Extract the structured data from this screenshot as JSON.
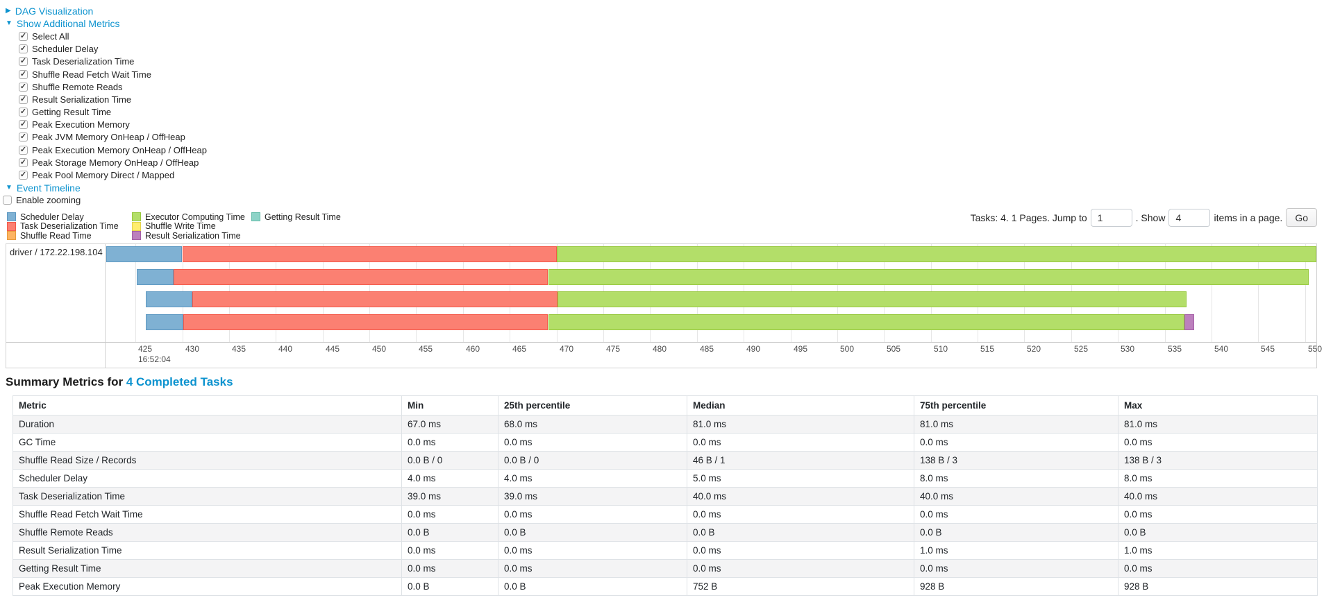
{
  "colors": {
    "link": "#0d93cf",
    "grid": "#e6e6e6",
    "series": {
      "Scheduler Delay": {
        "fill": "#7FB1D3",
        "border": "#5E99C2"
      },
      "Task Deserialization Time": {
        "fill": "#FB8072",
        "border": "#F4594A"
      },
      "Shuffle Read Time": {
        "fill": "#FDB462",
        "border": "#E89B3E"
      },
      "Executor Computing Time": {
        "fill": "#B3DE69",
        "border": "#97C83E"
      },
      "Shuffle Write Time": {
        "fill": "#FFED6F",
        "border": "#E4D24B"
      },
      "Result Serialization Time": {
        "fill": "#BC80BD",
        "border": "#A55FA6"
      },
      "Getting Result Time": {
        "fill": "#8DD3C7",
        "border": "#62BBA8"
      }
    }
  },
  "sections": {
    "dag": {
      "label": "DAG Visualization",
      "state": "collapsed"
    },
    "additional_metrics": {
      "label": "Show Additional Metrics",
      "state": "expanded"
    },
    "event_timeline": {
      "label": "Event Timeline",
      "state": "expanded"
    }
  },
  "metric_checkboxes": [
    {
      "label": "Select All",
      "checked": true
    },
    {
      "label": "Scheduler Delay",
      "checked": true
    },
    {
      "label": "Task Deserialization Time",
      "checked": true
    },
    {
      "label": "Shuffle Read Fetch Wait Time",
      "checked": true
    },
    {
      "label": "Shuffle Remote Reads",
      "checked": true
    },
    {
      "label": "Result Serialization Time",
      "checked": true
    },
    {
      "label": "Getting Result Time",
      "checked": true
    },
    {
      "label": "Peak Execution Memory",
      "checked": true
    },
    {
      "label": "Peak JVM Memory OnHeap / OffHeap",
      "checked": true
    },
    {
      "label": "Peak Execution Memory OnHeap / OffHeap",
      "checked": true
    },
    {
      "label": "Peak Storage Memory OnHeap / OffHeap",
      "checked": true
    },
    {
      "label": "Peak Pool Memory Direct / Mapped",
      "checked": true
    }
  ],
  "enable_zooming": {
    "label": "Enable zooming",
    "checked": false
  },
  "legend": {
    "columns": [
      [
        "Scheduler Delay",
        "Task Deserialization Time",
        "Shuffle Read Time"
      ],
      [
        "Executor Computing Time",
        "Shuffle Write Time",
        "Result Serialization Time"
      ],
      [
        "Getting Result Time"
      ]
    ]
  },
  "pagination": {
    "tasks_text": "Tasks: 4. 1 Pages. Jump to",
    "jump_value": "1",
    "show_text": ". Show",
    "show_value": "4",
    "items_text": "items in a page.",
    "go_label": "Go"
  },
  "chart_data": {
    "type": "timeline",
    "group_label": "driver / 172.22.198.104",
    "x_axis": {
      "start_label": "16:52:04",
      "unit": "milliseconds within 16:52:04",
      "domain": [
        421.8,
        551.2
      ],
      "ticks": [
        425,
        430,
        435,
        440,
        445,
        450,
        455,
        460,
        465,
        470,
        475,
        480,
        485,
        490,
        495,
        500,
        505,
        510,
        515,
        520,
        525,
        530,
        535,
        540,
        545,
        550
      ]
    },
    "tasks": [
      {
        "segments": [
          {
            "name": "Scheduler Delay",
            "start": 421.9,
            "end": 430.0
          },
          {
            "name": "Task Deserialization Time",
            "start": 430.0,
            "end": 470.0
          },
          {
            "name": "Executor Computing Time",
            "start": 470.0,
            "end": 551.2
          }
        ]
      },
      {
        "segments": [
          {
            "name": "Scheduler Delay",
            "start": 425.1,
            "end": 429.1
          },
          {
            "name": "Task Deserialization Time",
            "start": 429.1,
            "end": 469.1
          },
          {
            "name": "Executor Computing Time",
            "start": 469.1,
            "end": 550.4
          }
        ]
      },
      {
        "segments": [
          {
            "name": "Scheduler Delay",
            "start": 426.1,
            "end": 431.1
          },
          {
            "name": "Task Deserialization Time",
            "start": 431.1,
            "end": 470.1
          },
          {
            "name": "Executor Computing Time",
            "start": 470.1,
            "end": 537.3
          }
        ]
      },
      {
        "segments": [
          {
            "name": "Scheduler Delay",
            "start": 426.1,
            "end": 430.1
          },
          {
            "name": "Task Deserialization Time",
            "start": 430.1,
            "end": 469.1
          },
          {
            "name": "Executor Computing Time",
            "start": 469.1,
            "end": 537.1
          },
          {
            "name": "Result Serialization Time",
            "start": 537.1,
            "end": 538.1
          }
        ]
      }
    ]
  },
  "summary": {
    "heading_prefix": "Summary Metrics for ",
    "heading_link": "4 Completed Tasks",
    "columns": [
      "Metric",
      "Min",
      "25th percentile",
      "Median",
      "75th percentile",
      "Max"
    ],
    "rows": [
      [
        "Duration",
        "67.0 ms",
        "68.0 ms",
        "81.0 ms",
        "81.0 ms",
        "81.0 ms"
      ],
      [
        "GC Time",
        "0.0 ms",
        "0.0 ms",
        "0.0 ms",
        "0.0 ms",
        "0.0 ms"
      ],
      [
        "Shuffle Read Size / Records",
        "0.0 B / 0",
        "0.0 B / 0",
        "46 B / 1",
        "138 B / 3",
        "138 B / 3"
      ],
      [
        "Scheduler Delay",
        "4.0 ms",
        "4.0 ms",
        "5.0 ms",
        "8.0 ms",
        "8.0 ms"
      ],
      [
        "Task Deserialization Time",
        "39.0 ms",
        "39.0 ms",
        "40.0 ms",
        "40.0 ms",
        "40.0 ms"
      ],
      [
        "Shuffle Read Fetch Wait Time",
        "0.0 ms",
        "0.0 ms",
        "0.0 ms",
        "0.0 ms",
        "0.0 ms"
      ],
      [
        "Shuffle Remote Reads",
        "0.0 B",
        "0.0 B",
        "0.0 B",
        "0.0 B",
        "0.0 B"
      ],
      [
        "Result Serialization Time",
        "0.0 ms",
        "0.0 ms",
        "0.0 ms",
        "1.0 ms",
        "1.0 ms"
      ],
      [
        "Getting Result Time",
        "0.0 ms",
        "0.0 ms",
        "0.0 ms",
        "0.0 ms",
        "0.0 ms"
      ],
      [
        "Peak Execution Memory",
        "0.0 B",
        "0.0 B",
        "752 B",
        "928 B",
        "928 B"
      ]
    ]
  }
}
